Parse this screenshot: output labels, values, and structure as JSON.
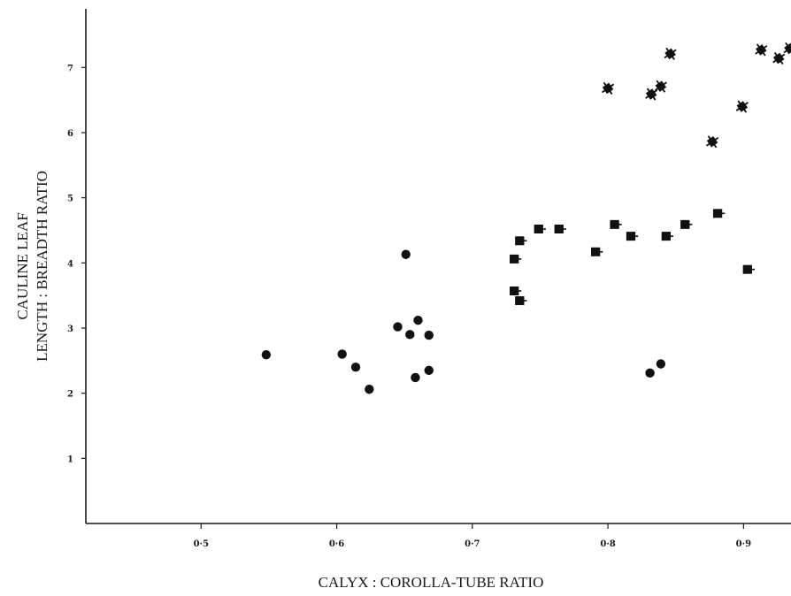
{
  "chart_data": {
    "type": "scatter",
    "xlabel": "CALYX : COROLLA-TUBE RATIO",
    "ylabel_lines": [
      "CAULINE LEAF",
      "LENGTH : BREADTH RATIO"
    ],
    "xlim": [
      0.415,
      0.935
    ],
    "ylim": [
      0,
      7.9
    ],
    "x_ticks": [
      {
        "value": 0.5,
        "label": "0·5"
      },
      {
        "value": 0.6,
        "label": "0·6"
      },
      {
        "value": 0.7,
        "label": "0·7"
      },
      {
        "value": 0.8,
        "label": "0·8"
      },
      {
        "value": 0.9,
        "label": "0·9"
      }
    ],
    "y_ticks": [
      {
        "value": 1,
        "label": "1"
      },
      {
        "value": 2,
        "label": "2"
      },
      {
        "value": 3,
        "label": "3"
      },
      {
        "value": 4,
        "label": "4"
      },
      {
        "value": 5,
        "label": "5"
      },
      {
        "value": 6,
        "label": "6"
      },
      {
        "value": 7,
        "label": "7"
      }
    ],
    "grid": false,
    "legend": "none",
    "series": [
      {
        "marker": "circle",
        "points": [
          {
            "x": 0.548,
            "y": 2.59
          },
          {
            "x": 0.604,
            "y": 2.6
          },
          {
            "x": 0.614,
            "y": 2.4
          },
          {
            "x": 0.624,
            "y": 2.06
          },
          {
            "x": 0.645,
            "y": 3.02
          },
          {
            "x": 0.651,
            "y": 4.13
          },
          {
            "x": 0.654,
            "y": 2.9
          },
          {
            "x": 0.66,
            "y": 3.12
          },
          {
            "x": 0.658,
            "y": 2.24
          },
          {
            "x": 0.668,
            "y": 2.35
          },
          {
            "x": 0.668,
            "y": 2.89
          },
          {
            "x": 0.831,
            "y": 2.31
          },
          {
            "x": 0.839,
            "y": 2.45
          }
        ]
      },
      {
        "marker": "flag",
        "points": [
          {
            "x": 0.731,
            "y": 4.06
          },
          {
            "x": 0.731,
            "y": 3.57
          },
          {
            "x": 0.735,
            "y": 4.34
          },
          {
            "x": 0.735,
            "y": 3.42
          },
          {
            "x": 0.749,
            "y": 4.52
          },
          {
            "x": 0.764,
            "y": 4.52
          },
          {
            "x": 0.791,
            "y": 4.17
          },
          {
            "x": 0.805,
            "y": 4.59
          },
          {
            "x": 0.817,
            "y": 4.41
          },
          {
            "x": 0.843,
            "y": 4.41
          },
          {
            "x": 0.857,
            "y": 4.59
          },
          {
            "x": 0.881,
            "y": 4.76
          },
          {
            "x": 0.903,
            "y": 3.9
          }
        ]
      },
      {
        "marker": "star",
        "points": [
          {
            "x": 0.8,
            "y": 6.68
          },
          {
            "x": 0.832,
            "y": 6.59
          },
          {
            "x": 0.839,
            "y": 6.71
          },
          {
            "x": 0.846,
            "y": 7.21
          },
          {
            "x": 0.877,
            "y": 5.86
          },
          {
            "x": 0.899,
            "y": 6.4
          },
          {
            "x": 0.913,
            "y": 7.27
          },
          {
            "x": 0.926,
            "y": 7.14
          },
          {
            "x": 0.934,
            "y": 7.29
          }
        ]
      }
    ]
  }
}
